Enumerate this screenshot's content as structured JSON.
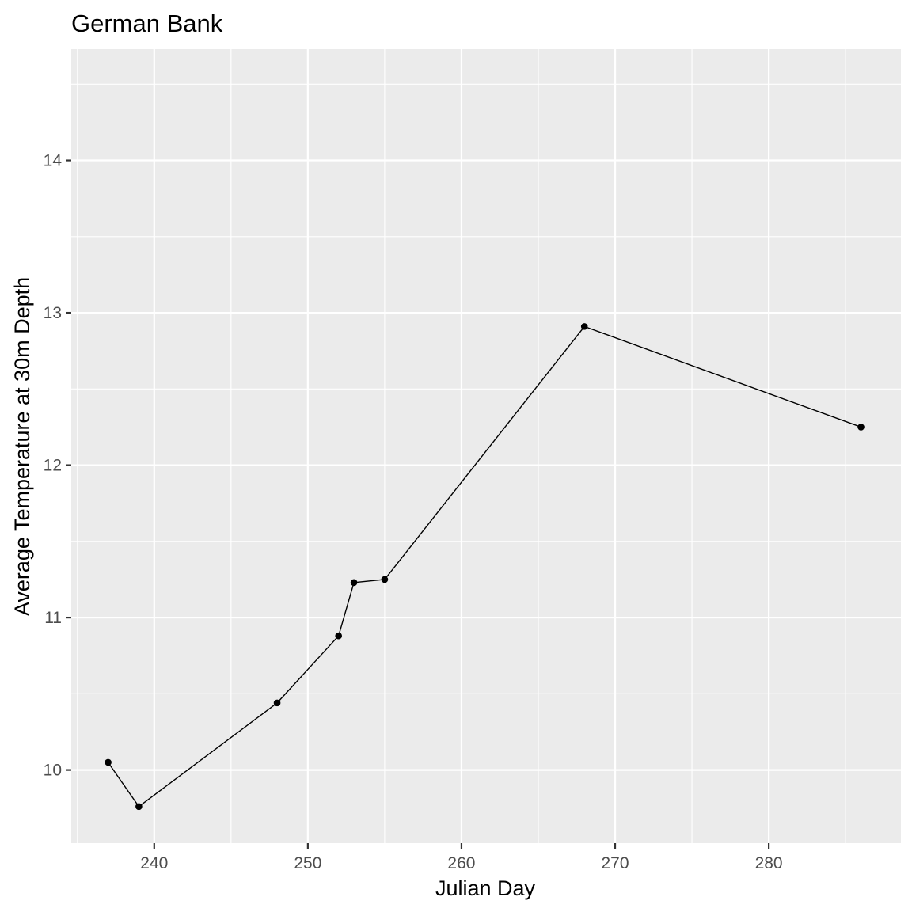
{
  "chart_data": {
    "type": "line",
    "title": "German Bank",
    "xlabel": "Julian Day",
    "ylabel": "Average Temperature at 30m Depth",
    "x": [
      237,
      239,
      248,
      252,
      253,
      255,
      268,
      286
    ],
    "series": [
      {
        "values": [
          10.05,
          9.76,
          10.44,
          10.88,
          11.23,
          11.25,
          12.91,
          12.25
        ]
      }
    ],
    "xlim": [
      234.6,
      288.6
    ],
    "ylim": [
      9.52,
      14.73
    ],
    "xticks": [
      240,
      250,
      260,
      270,
      280
    ],
    "yticks": [
      10,
      11,
      12,
      13,
      14
    ],
    "grid": true,
    "legend": "none",
    "colors": {
      "panel": "#ebebeb",
      "grid": "#ffffff",
      "line": "#000000",
      "point": "#000000",
      "tick_text": "#4d4d4d",
      "tick_mark": "#333333"
    }
  }
}
